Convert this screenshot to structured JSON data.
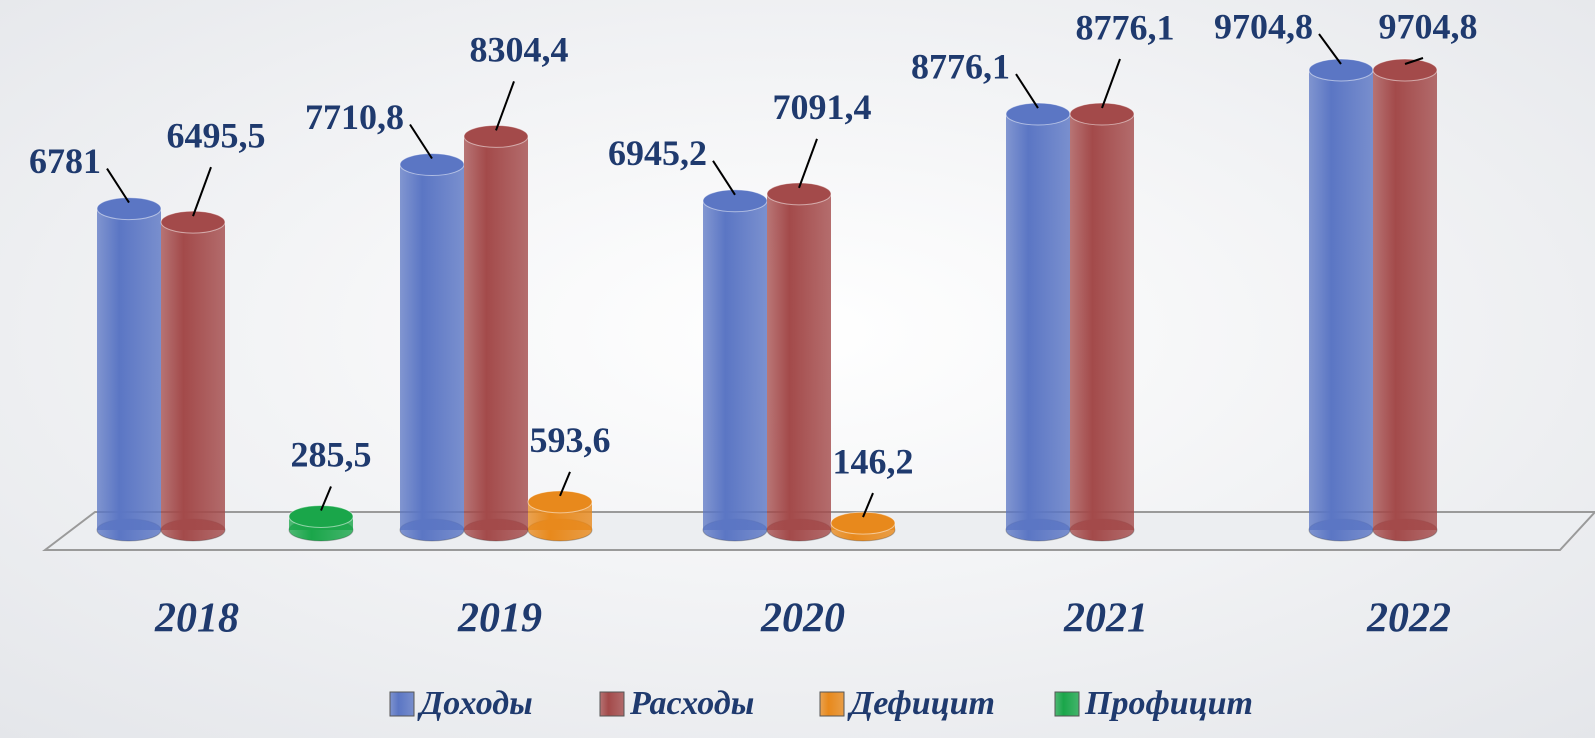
{
  "chart_data": {
    "type": "bar3d",
    "categories": [
      "2018",
      "2019",
      "2020",
      "2021",
      "2022"
    ],
    "series": [
      {
        "name": "Доходы",
        "color": "#5b76c4",
        "values": [
          6781,
          7710.8,
          6945.2,
          8776.1,
          9704.8
        ],
        "value_labels": [
          "6781",
          "7710,8",
          "6945,2",
          "8776,1",
          "9704,8"
        ]
      },
      {
        "name": "Расходы",
        "color": "#a34a4a",
        "values": [
          6495.5,
          8304.4,
          7091.4,
          8776.1,
          9704.8
        ],
        "value_labels": [
          "6495,5",
          "8304,4",
          "7091,4",
          "8776,1",
          "9704,8"
        ]
      },
      {
        "name": "Дефицит",
        "color": "#e8891c",
        "values": [
          null,
          593.6,
          146.2,
          null,
          null
        ],
        "value_labels": [
          null,
          "593,6",
          "146,2",
          null,
          null
        ]
      },
      {
        "name": "Профицит",
        "color": "#1aa64a",
        "values": [
          285.5,
          null,
          null,
          null,
          null
        ],
        "value_labels": [
          "285,5",
          null,
          null,
          null,
          null
        ]
      }
    ]
  }
}
